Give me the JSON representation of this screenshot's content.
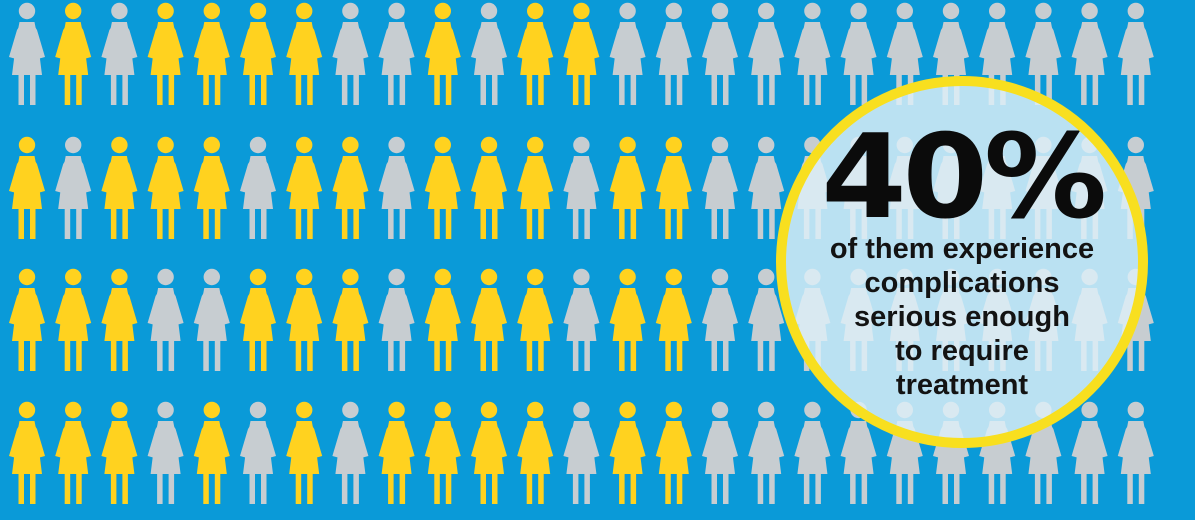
{
  "background": "#0a9ad8",
  "colors": {
    "highlighted": "#ffd21f",
    "neutral": "#c7cdd1",
    "ring": "#f8df1f",
    "callout_fill": "#dceef7",
    "text": "#131313"
  },
  "people": {
    "icon_name": "woman-icon",
    "rows": [
      [
        "neutral",
        "highlighted",
        "neutral",
        "highlighted",
        "highlighted",
        "highlighted",
        "highlighted",
        "neutral",
        "neutral",
        "highlighted",
        "neutral",
        "highlighted",
        "highlighted",
        "neutral",
        "neutral",
        "neutral",
        "neutral",
        "neutral",
        "neutral",
        "neutral",
        "neutral",
        "neutral",
        "neutral",
        "neutral",
        "neutral"
      ],
      [
        "highlighted",
        "neutral",
        "highlighted",
        "highlighted",
        "highlighted",
        "neutral",
        "highlighted",
        "highlighted",
        "neutral",
        "highlighted",
        "highlighted",
        "highlighted",
        "neutral",
        "highlighted",
        "highlighted",
        "neutral",
        "neutral",
        "neutral",
        "neutral",
        "neutral",
        "neutral",
        "neutral",
        "neutral",
        "neutral",
        "neutral"
      ],
      [
        "highlighted",
        "highlighted",
        "highlighted",
        "neutral",
        "neutral",
        "highlighted",
        "highlighted",
        "highlighted",
        "neutral",
        "highlighted",
        "highlighted",
        "highlighted",
        "neutral",
        "highlighted",
        "highlighted",
        "neutral",
        "neutral",
        "neutral",
        "neutral",
        "neutral",
        "neutral",
        "neutral",
        "neutral",
        "neutral",
        "neutral"
      ],
      [
        "highlighted",
        "highlighted",
        "highlighted",
        "neutral",
        "highlighted",
        "neutral",
        "highlighted",
        "neutral",
        "highlighted",
        "highlighted",
        "highlighted",
        "highlighted",
        "neutral",
        "highlighted",
        "highlighted",
        "neutral",
        "neutral",
        "neutral",
        "neutral",
        "neutral",
        "neutral",
        "neutral",
        "neutral",
        "neutral",
        "neutral"
      ]
    ]
  },
  "callout": {
    "stat": "40%",
    "lines": [
      "of them experience",
      "complications",
      "serious enough",
      "to require",
      "treatment"
    ]
  }
}
